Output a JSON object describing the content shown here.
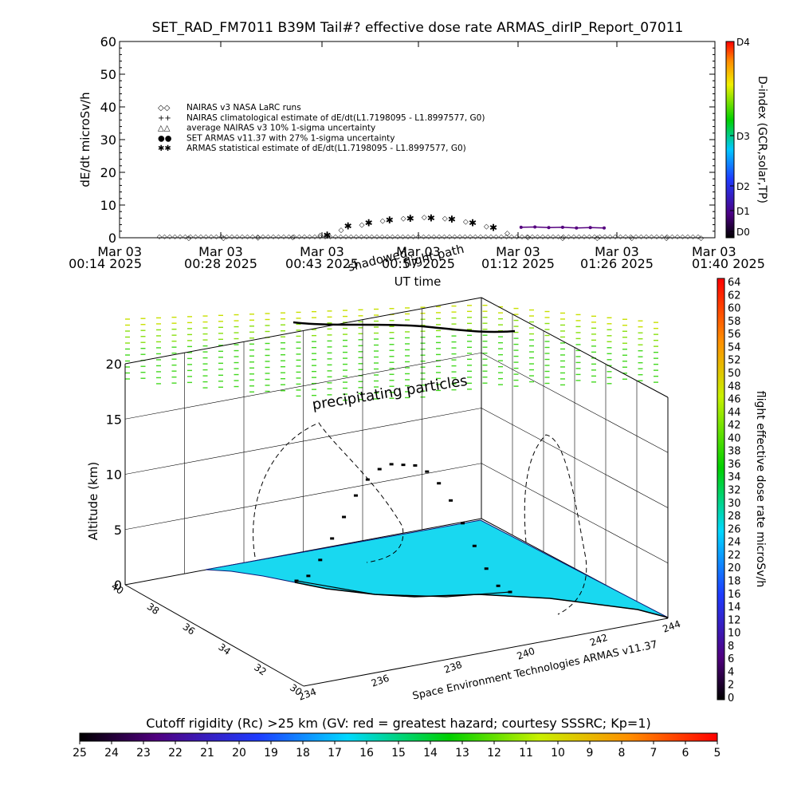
{
  "title": "SET_RAD_FM7011  B39M Tail#? effective dose rate ARMAS_dirIP_Report_07011",
  "top_chart": {
    "ylabel": "dE/dt microSv/h",
    "xlabel": "UT time",
    "y_ticks": [
      "0",
      "10",
      "20",
      "30",
      "40",
      "50",
      "60"
    ],
    "x_ticks": [
      {
        "line1": "Mar 03",
        "line2": "00:14 2025"
      },
      {
        "line1": "Mar 03",
        "line2": "00:28 2025"
      },
      {
        "line1": "Mar 03",
        "line2": "00:43 2025"
      },
      {
        "line1": "Mar 03",
        "line2": "00:57 2025"
      },
      {
        "line1": "Mar 03",
        "line2": "01:12 2025"
      },
      {
        "line1": "Mar 03",
        "line2": "01:26 2025"
      },
      {
        "line1": "Mar 03",
        "line2": "01:40 2025"
      }
    ],
    "legend": [
      {
        "sym": "◇◇",
        "label": "NAIRAS v3 NASA LaRC runs",
        "color": "#000000"
      },
      {
        "sym": "++",
        "label": "NAIRAS climatological estimate of dE/dt(L1.7198095 - L1.8997577, G0)",
        "color": "#000000"
      },
      {
        "sym": "△△",
        "label": "average NAIRAS v3 10% 1-sigma uncertainty",
        "color": "#000000"
      },
      {
        "sym": "●●",
        "label": "SET ARMAS v11.37 with 27% 1-sigma uncertainty",
        "color": "#1e3cff"
      },
      {
        "sym": "✱✱",
        "label": "ARMAS statistical estimate of dE/dt(L1.7198095 - L1.8997577, G0)",
        "color": "#000000"
      }
    ],
    "overlay_labels": {
      "a": "shadowed",
      "b": "flight path"
    },
    "dindex": {
      "label": "D-index (GCR,solar,TP)",
      "ticks": [
        "D4",
        "D3",
        "D2",
        "D1",
        "D0"
      ]
    }
  },
  "chart_data": [
    {
      "type": "scatter",
      "title": "SET_RAD_FM7011  B39M Tail#? effective dose rate ARMAS_dirIP_Report_07011",
      "xlabel": "UT time",
      "ylabel": "dE/dt microSv/h",
      "ylim": [
        0,
        60
      ],
      "x_range": [
        "00:14",
        "01:40"
      ],
      "series": [
        {
          "name": "NAIRAS v3 NASA LaRC runs",
          "x": [
            "00:24",
            "00:29",
            "00:34",
            "00:39",
            "00:43",
            "00:46",
            "00:49",
            "00:52",
            "00:55",
            "00:58",
            "01:01",
            "01:04",
            "01:07",
            "01:10",
            "01:13",
            "01:18",
            "01:23",
            "01:28",
            "01:33",
            "01:38"
          ],
          "y": [
            0.0,
            0.0,
            0.1,
            0.3,
            0.8,
            2.5,
            4.0,
            5.2,
            6.0,
            6.3,
            6.0,
            5.0,
            3.5,
            1.5,
            0.3,
            0.0,
            0.0,
            0.0,
            0.0,
            0.0
          ]
        },
        {
          "name": "ARMAS statistical estimate of dE/dt(L1.7198095 - L1.8997577, G0)",
          "x": [
            "00:44",
            "00:47",
            "00:50",
            "00:53",
            "00:56",
            "00:59",
            "01:02",
            "01:05",
            "01:08"
          ],
          "y": [
            1.0,
            3.8,
            4.8,
            5.6,
            6.1,
            6.2,
            5.9,
            4.8,
            3.3
          ]
        },
        {
          "name": "SET ARMAS v11.37 with 27% 1-sigma uncertainty",
          "x": [
            "01:12",
            "01:14",
            "01:16",
            "01:18",
            "01:20",
            "01:22",
            "01:24"
          ],
          "y": [
            3.2,
            3.3,
            3.1,
            3.2,
            3.0,
            3.1,
            3.0
          ]
        }
      ]
    },
    {
      "type": "scatter",
      "title": "",
      "zlabel": "Altitude (km)",
      "zlim": [
        0,
        20
      ],
      "z_ticks": [
        "0",
        "5",
        "10",
        "15",
        "20"
      ],
      "lat_ticks": [
        "30",
        "32",
        "34",
        "36",
        "38",
        "40"
      ],
      "lon_ticks": [
        "234",
        "236",
        "238",
        "240",
        "242",
        "244"
      ],
      "annotation": "precipitating particles",
      "credit": "Space Environment Technologies ARMAS v11.37",
      "flight_profile_altitude_km": [
        0,
        0.5,
        2,
        4,
        6,
        8,
        9.5,
        10.5,
        11,
        11,
        11,
        10.5,
        9.5,
        8,
        6,
        4,
        2,
        0.5,
        0
      ],
      "projected_track_altitude_km": 23
    }
  ],
  "dose_colorbar": {
    "label": "flight effective dose rate microSv/h",
    "ticks": [
      "64",
      "62",
      "60",
      "58",
      "56",
      "54",
      "52",
      "50",
      "48",
      "46",
      "44",
      "42",
      "40",
      "38",
      "36",
      "34",
      "32",
      "30",
      "28",
      "26",
      "24",
      "22",
      "20",
      "18",
      "16",
      "14",
      "12",
      "10",
      "8",
      "6",
      "4",
      "2",
      "0"
    ]
  },
  "cutoff_colorbar": {
    "label": "Cutoff rigidity (Rc) >25 km (GV: red = greatest hazard; courtesy SSSRC; Kp=1)",
    "ticks": [
      "25",
      "24",
      "23",
      "22",
      "21",
      "20",
      "19",
      "18",
      "17",
      "16",
      "15",
      "14",
      "13",
      "12",
      "11",
      "10",
      "9",
      "8",
      "7",
      "6",
      "5"
    ]
  },
  "colors": {
    "map_fill": "#19d8f0",
    "flight": "#000000",
    "armas": "#1e3cff",
    "track": "#55007f"
  }
}
